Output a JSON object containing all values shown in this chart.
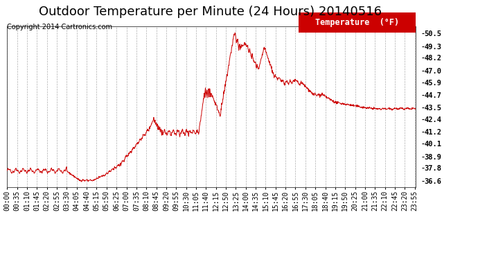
{
  "title": "Outdoor Temperature per Minute (24 Hours) 20140516",
  "copyright_text": "Copyright 2014 Cartronics.com",
  "legend_label": "Temperature  (°F)",
  "line_color": "#cc0000",
  "background_color": "#ffffff",
  "plot_bg_color": "#ffffff",
  "grid_color": "#999999",
  "ytick_labels": [
    "36.6",
    "37.8",
    "38.9",
    "40.1",
    "41.2",
    "42.4",
    "43.5",
    "44.7",
    "45.9",
    "47.0",
    "48.2",
    "49.3",
    "50.5"
  ],
  "ytick_values": [
    36.6,
    37.8,
    38.9,
    40.1,
    41.2,
    42.4,
    43.5,
    44.7,
    45.9,
    47.0,
    48.2,
    49.3,
    50.5
  ],
  "ymin": 36.0,
  "ymax": 51.2,
  "title_fontsize": 13,
  "copyright_fontsize": 7,
  "legend_fontsize": 8.5,
  "tick_fontsize": 7
}
